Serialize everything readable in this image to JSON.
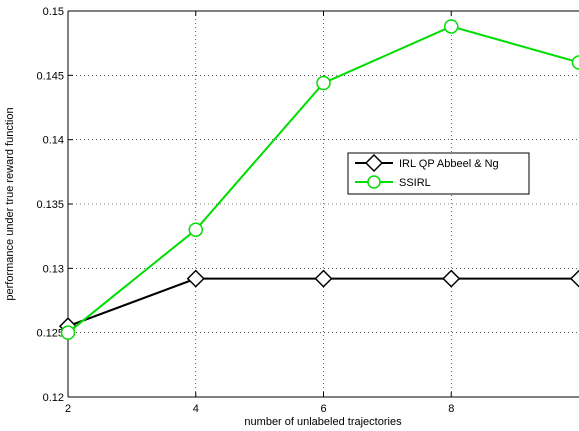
{
  "chart_data": {
    "type": "line",
    "title": "",
    "xlabel": "number of unlabeled trajectories",
    "ylabel": "performance under true reward function",
    "xlim": [
      2,
      10
    ],
    "ylim": [
      0.12,
      0.15
    ],
    "x_ticks": [
      "2",
      "4",
      "6",
      "8"
    ],
    "y_ticks": [
      "0.12",
      "0.125",
      "0.13",
      "0.135",
      "0.14",
      "0.145",
      "0.15"
    ],
    "grid": true,
    "legend_position": "center-right",
    "series": [
      {
        "name": "IRL QP Abbeel & Ng",
        "color": "#000000",
        "marker": "diamond",
        "x": [
          2,
          4,
          6,
          8,
          10
        ],
        "y": [
          0.1255,
          0.1292,
          0.1292,
          0.1292,
          0.1292
        ]
      },
      {
        "name": "SSIRL",
        "color": "#00dd00",
        "marker": "circle",
        "x": [
          2,
          4,
          6,
          8,
          10
        ],
        "y": [
          0.125,
          0.133,
          0.1444,
          0.1488,
          0.146
        ]
      }
    ]
  }
}
